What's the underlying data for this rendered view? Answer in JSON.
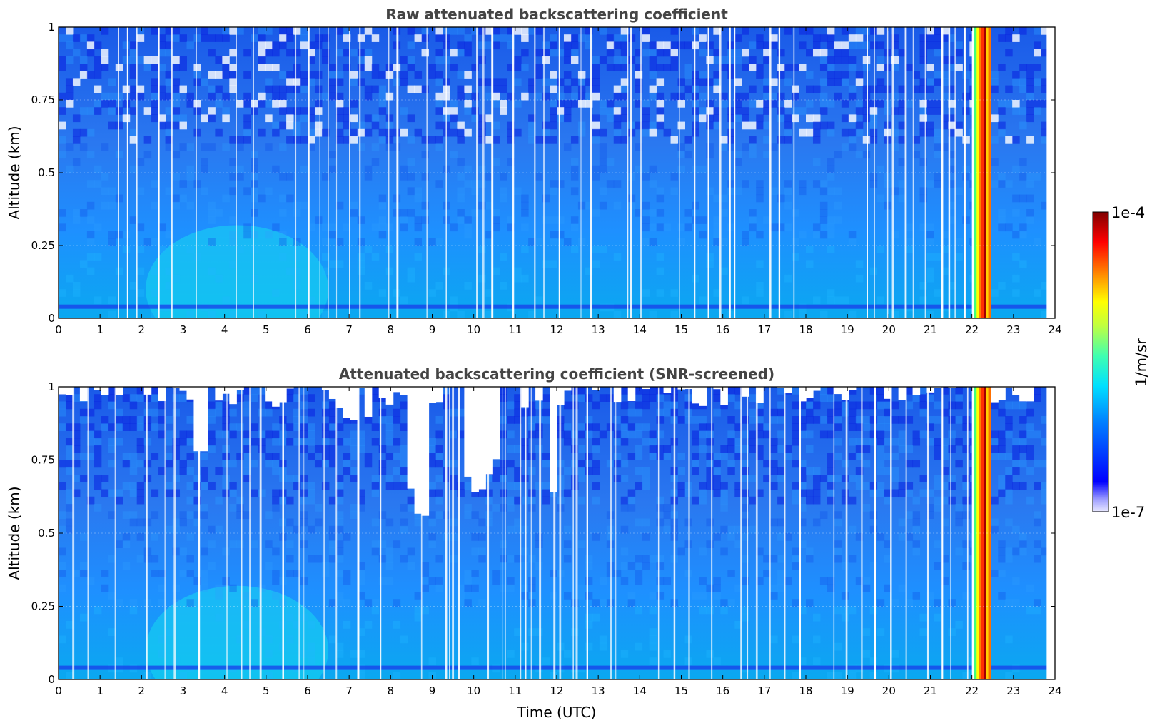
{
  "chart_data": [
    {
      "type": "heatmap",
      "title": "Raw attenuated backscattering coefficient",
      "xlabel": "",
      "ylabel": "Altitude (km)",
      "xlim": [
        0,
        24
      ],
      "ylim": [
        0,
        1
      ],
      "xticks": [
        "0",
        "1",
        "2",
        "3",
        "4",
        "5",
        "6",
        "7",
        "8",
        "9",
        "10",
        "11",
        "12",
        "13",
        "14",
        "15",
        "16",
        "17",
        "18",
        "19",
        "20",
        "21",
        "22",
        "23",
        "24"
      ],
      "yticks": [
        "0",
        "0.25",
        "0.5",
        "0.75",
        "1"
      ],
      "grid": true,
      "screened": false
    },
    {
      "type": "heatmap",
      "title": "Attenuated backscattering coefficient (SNR-screened)",
      "xlabel": "Time (UTC)",
      "ylabel": "Altitude (km)",
      "xlim": [
        0,
        24
      ],
      "ylim": [
        0,
        1
      ],
      "xticks": [
        "0",
        "1",
        "2",
        "3",
        "4",
        "5",
        "6",
        "7",
        "8",
        "9",
        "10",
        "11",
        "12",
        "13",
        "14",
        "15",
        "16",
        "17",
        "18",
        "19",
        "20",
        "21",
        "22",
        "23",
        "24"
      ],
      "yticks": [
        "0",
        "0.25",
        "0.5",
        "0.75",
        "1"
      ],
      "grid": true,
      "screened": true
    }
  ],
  "colorbar": {
    "label": "1/m/sr",
    "max_label": "1e-4",
    "min_label": "1e-7",
    "scale": "log",
    "range": [
      1e-07,
      0.0001
    ],
    "colormap": "jet"
  },
  "features": {
    "data_end_hour": 23.8,
    "high_signal_band_hours": [
      22.0,
      22.45
    ],
    "surface_layer_km": 0.04,
    "clear_sky_gaps_hours": [
      8.4,
      9.0,
      9.8,
      10.6,
      11.75,
      11.95
    ]
  }
}
